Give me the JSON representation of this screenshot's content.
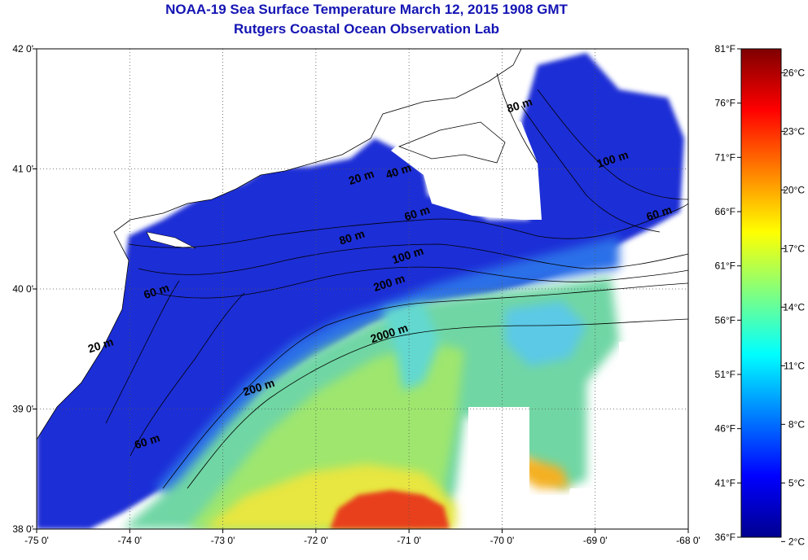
{
  "title": "NOAA-19 Sea Surface Temperature March 12, 2015 1908 GMT",
  "subtitle": "Rutgers Coastal Ocean Observation Lab",
  "map": {
    "lon_ticks": [
      "-75 0'",
      "-74 0'",
      "-73 0'",
      "-72 0'",
      "-71 0'",
      "-70 0'",
      "-69 0'",
      "-68 0'"
    ],
    "lat_ticks": [
      "42 0'",
      "41 0'",
      "40 0'",
      "39 0'",
      "38 0'"
    ],
    "isobath_labels": [
      {
        "text": "20 m",
        "lon": -71.5,
        "lat": 40.9
      },
      {
        "text": "40 m",
        "lon": -71.1,
        "lat": 40.95
      },
      {
        "text": "60 m",
        "lon": -70.9,
        "lat": 40.6
      },
      {
        "text": "80 m",
        "lon": -71.6,
        "lat": 40.4
      },
      {
        "text": "100 m",
        "lon": -71.0,
        "lat": 40.25
      },
      {
        "text": "200 m",
        "lon": -71.2,
        "lat": 40.02
      },
      {
        "text": "2000 m",
        "lon": -71.2,
        "lat": 39.6
      },
      {
        "text": "200 m",
        "lon": -72.6,
        "lat": 39.15
      },
      {
        "text": "60 m",
        "lon": -73.7,
        "lat": 39.95
      },
      {
        "text": "20 m",
        "lon": -74.3,
        "lat": 39.5
      },
      {
        "text": "60 m",
        "lon": -73.8,
        "lat": 38.7
      },
      {
        "text": "80 m",
        "lon": -69.8,
        "lat": 41.5
      },
      {
        "text": "100 m",
        "lon": -68.8,
        "lat": 41.05
      },
      {
        "text": "60 m",
        "lon": -68.3,
        "lat": 40.6
      }
    ]
  },
  "colorbar": {
    "fahrenheit": [
      "81°F",
      "76°F",
      "71°F",
      "66°F",
      "61°F",
      "56°F",
      "51°F",
      "46°F",
      "41°F",
      "36°F"
    ],
    "celsius": [
      "26°C",
      "23°C",
      "20°C",
      "17°C",
      "14°C",
      "11°C",
      "8°C",
      "5°C",
      "2°C"
    ],
    "colors": [
      "#7f0000",
      "#ff0000",
      "#ff8000",
      "#ffff00",
      "#80ff80",
      "#00ffff",
      "#0080ff",
      "#0000ff",
      "#00008f"
    ]
  }
}
